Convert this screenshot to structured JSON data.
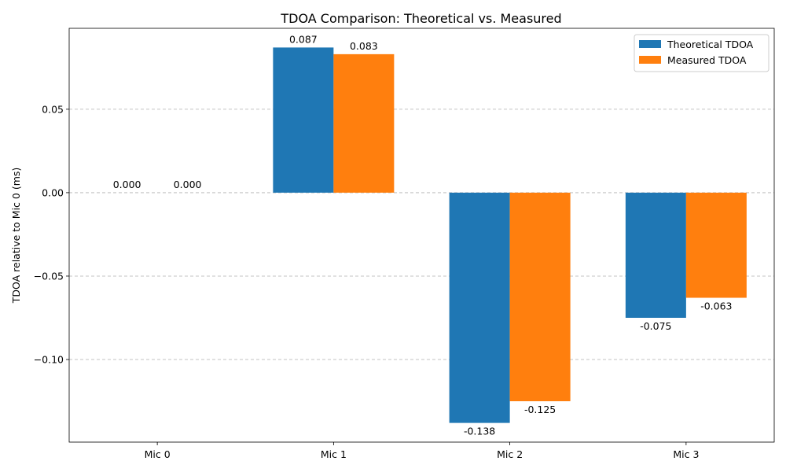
{
  "chart_data": {
    "type": "bar",
    "title": "TDOA Comparison: Theoretical vs. Measured",
    "xlabel": "",
    "ylabel": "TDOA relative to Mic 0 (ms)",
    "categories": [
      "Mic 0",
      "Mic 1",
      "Mic 2",
      "Mic 3"
    ],
    "series": [
      {
        "name": "Theoretical TDOA",
        "color": "#1f77b4",
        "values": [
          0.0,
          0.087,
          -0.138,
          -0.075
        ],
        "labels": [
          "0.000",
          "0.087",
          "-0.138",
          "-0.075"
        ]
      },
      {
        "name": "Measured TDOA",
        "color": "#ff7f0e",
        "values": [
          0.0,
          0.083,
          -0.125,
          -0.063
        ],
        "labels": [
          "0.000",
          "0.083",
          "-0.125",
          "-0.063"
        ]
      }
    ],
    "ylim": [
      -0.1495,
      0.0985
    ],
    "yticks": [
      0.05,
      0.0,
      -0.05,
      -0.1
    ],
    "ytick_labels": [
      "0.05",
      "0.00",
      "−0.05",
      "−0.10"
    ],
    "grid": "y-dashed",
    "legend_position": "upper-right"
  }
}
